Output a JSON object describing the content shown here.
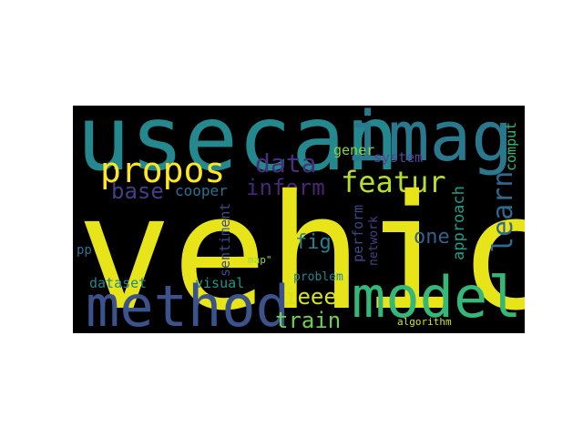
{
  "words": [
    {
      "id": "vehicl",
      "text": "vehicl",
      "color": "#e7e419"
    },
    {
      "id": "usecan",
      "text": "usecan",
      "color": "#23898e"
    },
    {
      "id": "imag",
      "text": "imag",
      "color": "#2a788e"
    },
    {
      "id": "method",
      "text": "method",
      "color": "#3b528b"
    },
    {
      "id": "model",
      "text": "model",
      "color": "#35b779"
    },
    {
      "id": "propos",
      "text": "propos",
      "color": "#fde725"
    },
    {
      "id": "featur",
      "text": "featur",
      "color": "#b5de2b"
    },
    {
      "id": "data",
      "text": "data",
      "color": "#472f7d"
    },
    {
      "id": "learn",
      "text": "learn",
      "color": "#31688e"
    },
    {
      "id": "inform",
      "text": "inform",
      "color": "#482576"
    },
    {
      "id": "base",
      "text": "base",
      "color": "#433e85"
    },
    {
      "id": "ieee",
      "text": "ieee",
      "color": "#d8e219"
    },
    {
      "id": "train",
      "text": "train",
      "color": "#6ece58"
    },
    {
      "id": "one",
      "text": "one",
      "color": "#355f8d"
    },
    {
      "id": "fig",
      "text": "fig",
      "color": "#26828e"
    },
    {
      "id": "approach",
      "text": "approach",
      "color": "#1f9e89"
    },
    {
      "id": "comput",
      "text": "comput",
      "color": "#37b878"
    },
    {
      "id": "gener",
      "text": "gener",
      "color": "#89d548"
    },
    {
      "id": "system",
      "text": "system",
      "color": "#5c3f95"
    },
    {
      "id": "cooper",
      "text": "cooper",
      "color": "#2c718e"
    },
    {
      "id": "visual",
      "text": "visual",
      "color": "#1f958b"
    },
    {
      "id": "dataset",
      "text": "dataset",
      "color": "#25858e"
    },
    {
      "id": "sentiment",
      "text": "sentiment",
      "color": "#3e4989"
    },
    {
      "id": "perform",
      "text": "perform",
      "color": "#3f4788"
    },
    {
      "id": "network",
      "text": "network",
      "color": "#414487"
    },
    {
      "id": "problem",
      "text": "problem",
      "color": "#24868e"
    },
    {
      "id": "map",
      "text": "map\"",
      "color": "#95d840"
    },
    {
      "id": "pp",
      "text": "pp",
      "color": "#2c718e"
    },
    {
      "id": "algorithm",
      "text": "algorithm",
      "color": "#d2e21b"
    }
  ]
}
